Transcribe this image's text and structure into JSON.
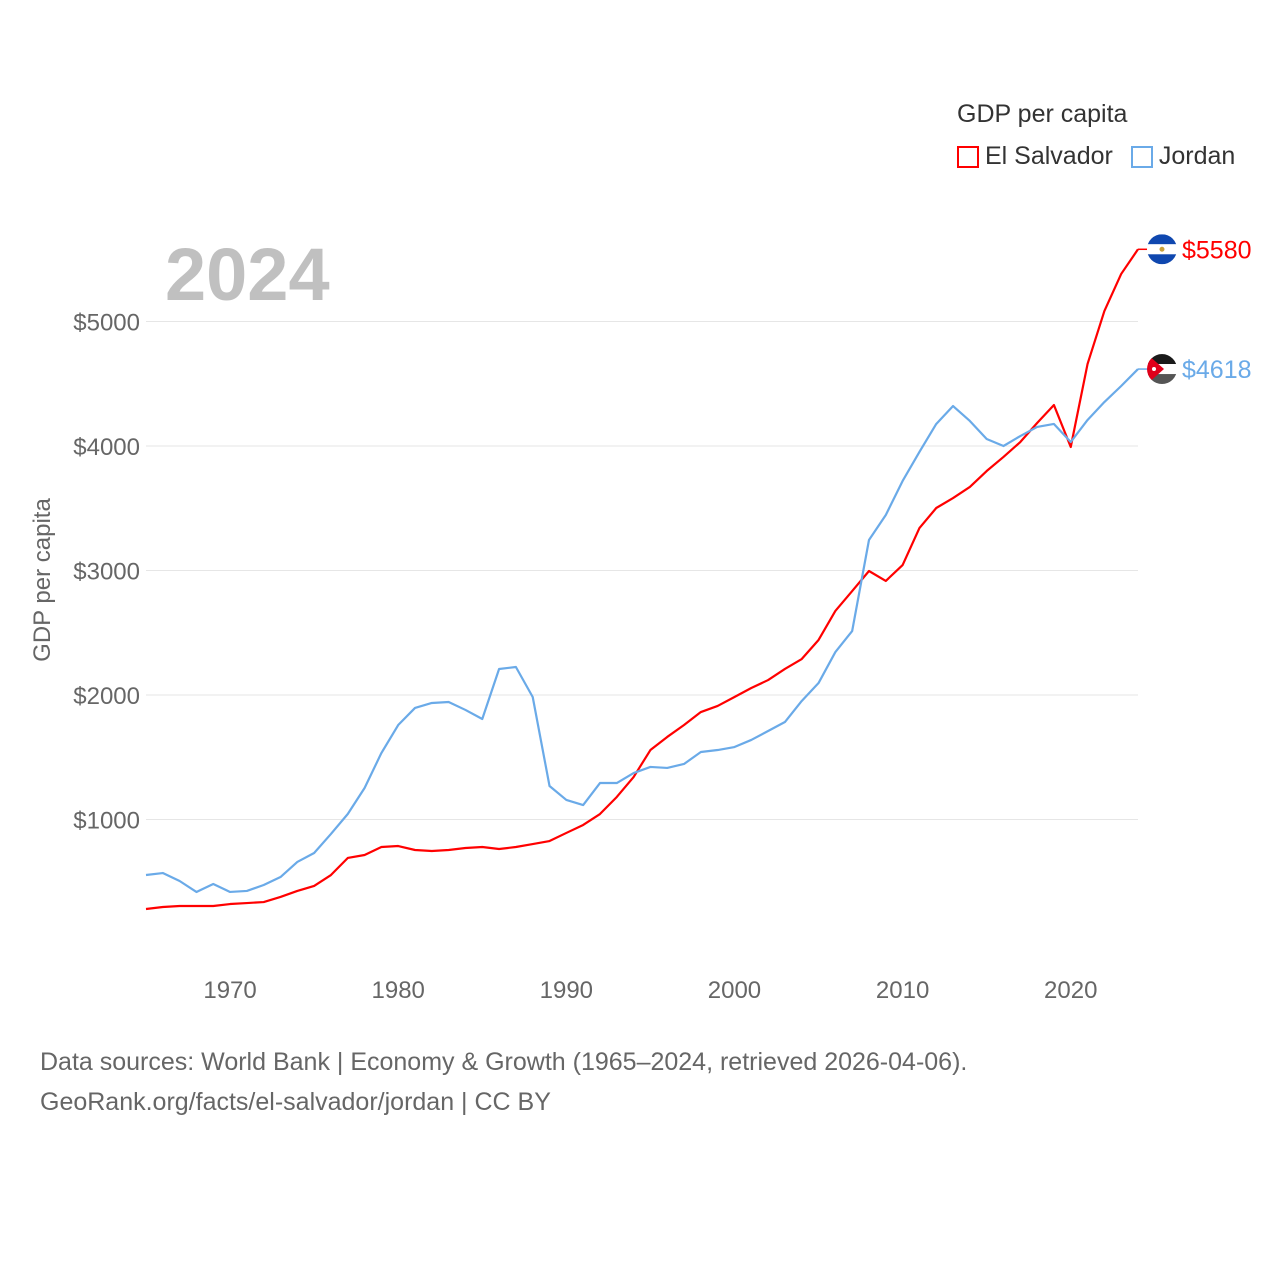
{
  "chart_data": {
    "type": "line",
    "title": "GDP per capita",
    "year_label": "2024",
    "ylabel": "GDP per capita",
    "xlabel": "",
    "xlim": [
      1965,
      2024
    ],
    "ylim": [
      0,
      5800
    ],
    "x_ticks": [
      1970,
      1980,
      1990,
      2000,
      2010,
      2020
    ],
    "y_ticks": [
      {
        "value": 1000,
        "label": "$1000"
      },
      {
        "value": 2000,
        "label": "$2000"
      },
      {
        "value": 3000,
        "label": "$3000"
      },
      {
        "value": 4000,
        "label": "$4000"
      },
      {
        "value": 5000,
        "label": "$5000"
      }
    ],
    "grid": true,
    "legend_position": "top-right",
    "x": [
      1965,
      1966,
      1967,
      1968,
      1969,
      1970,
      1971,
      1972,
      1973,
      1974,
      1975,
      1976,
      1977,
      1978,
      1979,
      1980,
      1981,
      1982,
      1983,
      1984,
      1985,
      1986,
      1987,
      1988,
      1989,
      1990,
      1991,
      1992,
      1993,
      1994,
      1995,
      1996,
      1997,
      1998,
      1999,
      2000,
      2001,
      2002,
      2003,
      2004,
      2005,
      2006,
      2007,
      2008,
      2009,
      2010,
      2011,
      2012,
      2013,
      2014,
      2015,
      2016,
      2017,
      2018,
      2019,
      2020,
      2021,
      2022,
      2023,
      2024
    ],
    "series": [
      {
        "name": "El Salvador",
        "color": "#ff0000",
        "end_label": "$5580",
        "flag": "el-salvador-flag",
        "values": [
          281,
          297,
          305,
          305,
          305,
          321,
          329,
          337,
          378,
          426,
          466,
          554,
          691,
          715,
          779,
          787,
          755,
          747,
          755,
          771,
          779,
          763,
          779,
          803,
          827,
          892,
          956,
          1044,
          1181,
          1341,
          1558,
          1663,
          1759,
          1863,
          1912,
          1984,
          2056,
          2120,
          2209,
          2289,
          2442,
          2675,
          2835,
          2996,
          2916,
          3044,
          3341,
          3502,
          3582,
          3671,
          3799,
          3912,
          4032,
          4185,
          4329,
          3992,
          4659,
          5084,
          5382,
          5580
        ]
      },
      {
        "name": "Jordan",
        "color": "#6aaae8",
        "end_label": "$4618",
        "flag": "jordan-flag",
        "values": [
          554,
          570,
          506,
          418,
          482,
          418,
          426,
          474,
          538,
          659,
          731,
          884,
          1044,
          1253,
          1534,
          1759,
          1896,
          1936,
          1944,
          1880,
          1807,
          2209,
          2225,
          1984,
          1269,
          1157,
          1116,
          1293,
          1293,
          1373,
          1422,
          1414,
          1446,
          1542,
          1558,
          1582,
          1639,
          1711,
          1783,
          1952,
          2096,
          2345,
          2514,
          3245,
          3446,
          3719,
          3952,
          4177,
          4321,
          4201,
          4056,
          4000,
          4080,
          4153,
          4177,
          4032,
          4209,
          4353,
          4482,
          4618
        ]
      }
    ]
  },
  "footer": {
    "line1": "Data sources: World Bank | Economy & Growth (1965–2024, retrieved 2026-04-06).",
    "line2": "GeoRank.org/facts/el-salvador/jordan | CC BY"
  }
}
